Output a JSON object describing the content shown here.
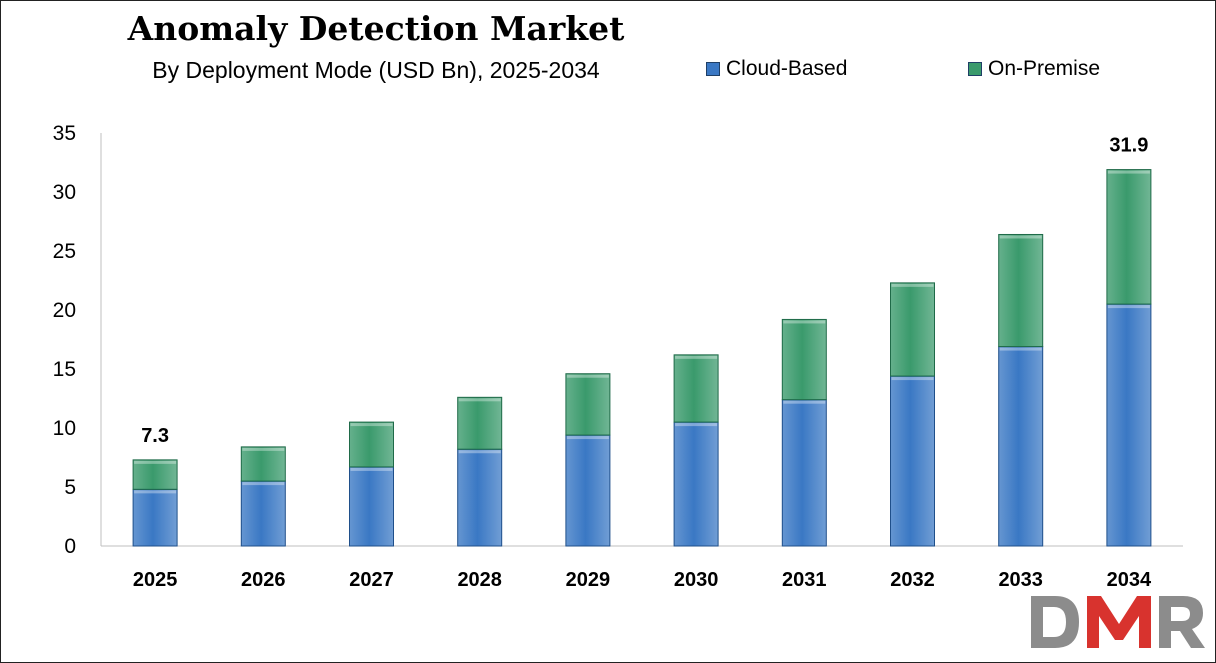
{
  "chart_data": {
    "type": "bar",
    "stacked": true,
    "title": "Anomaly Detection Market",
    "subtitle": "By Deployment Mode (USD Bn), 2025-2034",
    "categories": [
      "2025",
      "2026",
      "2027",
      "2028",
      "2029",
      "2030",
      "2031",
      "2032",
      "2033",
      "2034"
    ],
    "series": [
      {
        "name": "Cloud-Based",
        "color": "#3a78c4",
        "values": [
          4.8,
          5.5,
          6.7,
          8.2,
          9.4,
          10.5,
          12.4,
          14.4,
          16.9,
          20.5
        ]
      },
      {
        "name": "On-Premise",
        "color": "#3a9a6c",
        "values": [
          2.5,
          2.9,
          3.8,
          4.4,
          5.2,
          5.7,
          6.8,
          7.9,
          9.5,
          11.4
        ]
      }
    ],
    "totals_labels": [
      {
        "category": "2025",
        "label": "7.3"
      },
      {
        "category": "2034",
        "label": "31.9"
      }
    ],
    "ylim": [
      0,
      35
    ],
    "yticks": [
      0,
      5,
      10,
      15,
      20,
      25,
      30,
      35
    ],
    "xlabel": "",
    "ylabel": "",
    "grid": false,
    "legend_position": "top-right"
  },
  "logo": {
    "name": "DMR",
    "colors": {
      "dark": "#8c8c8c",
      "accent": "#d8332e"
    }
  }
}
